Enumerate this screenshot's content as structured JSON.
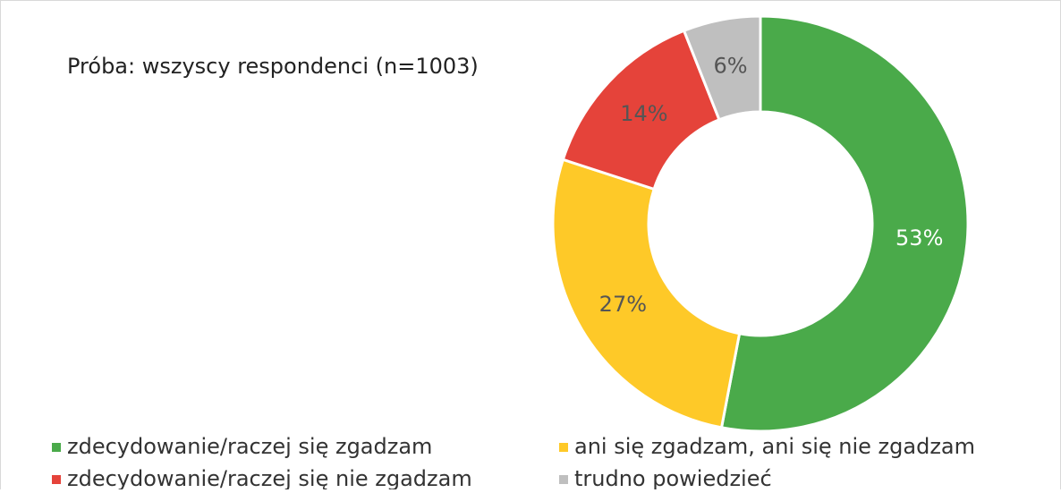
{
  "chart_data": {
    "type": "donut",
    "title": "Próba: wszyscy respondenci (n=1003)",
    "categories": [
      "zdecydowanie/raczej się zgadzam",
      "ani się zgadzam, ani się nie zgadzam",
      "zdecydowanie/raczej się nie zgadzam",
      "trudno powiedzieć"
    ],
    "values": [
      53,
      27,
      14,
      6
    ],
    "value_labels": [
      "53%",
      "27%",
      "14%",
      "6%"
    ],
    "colors": [
      "#4aaa4a",
      "#fec928",
      "#e5433a",
      "#bfbfbf"
    ],
    "legend": "bottom"
  }
}
